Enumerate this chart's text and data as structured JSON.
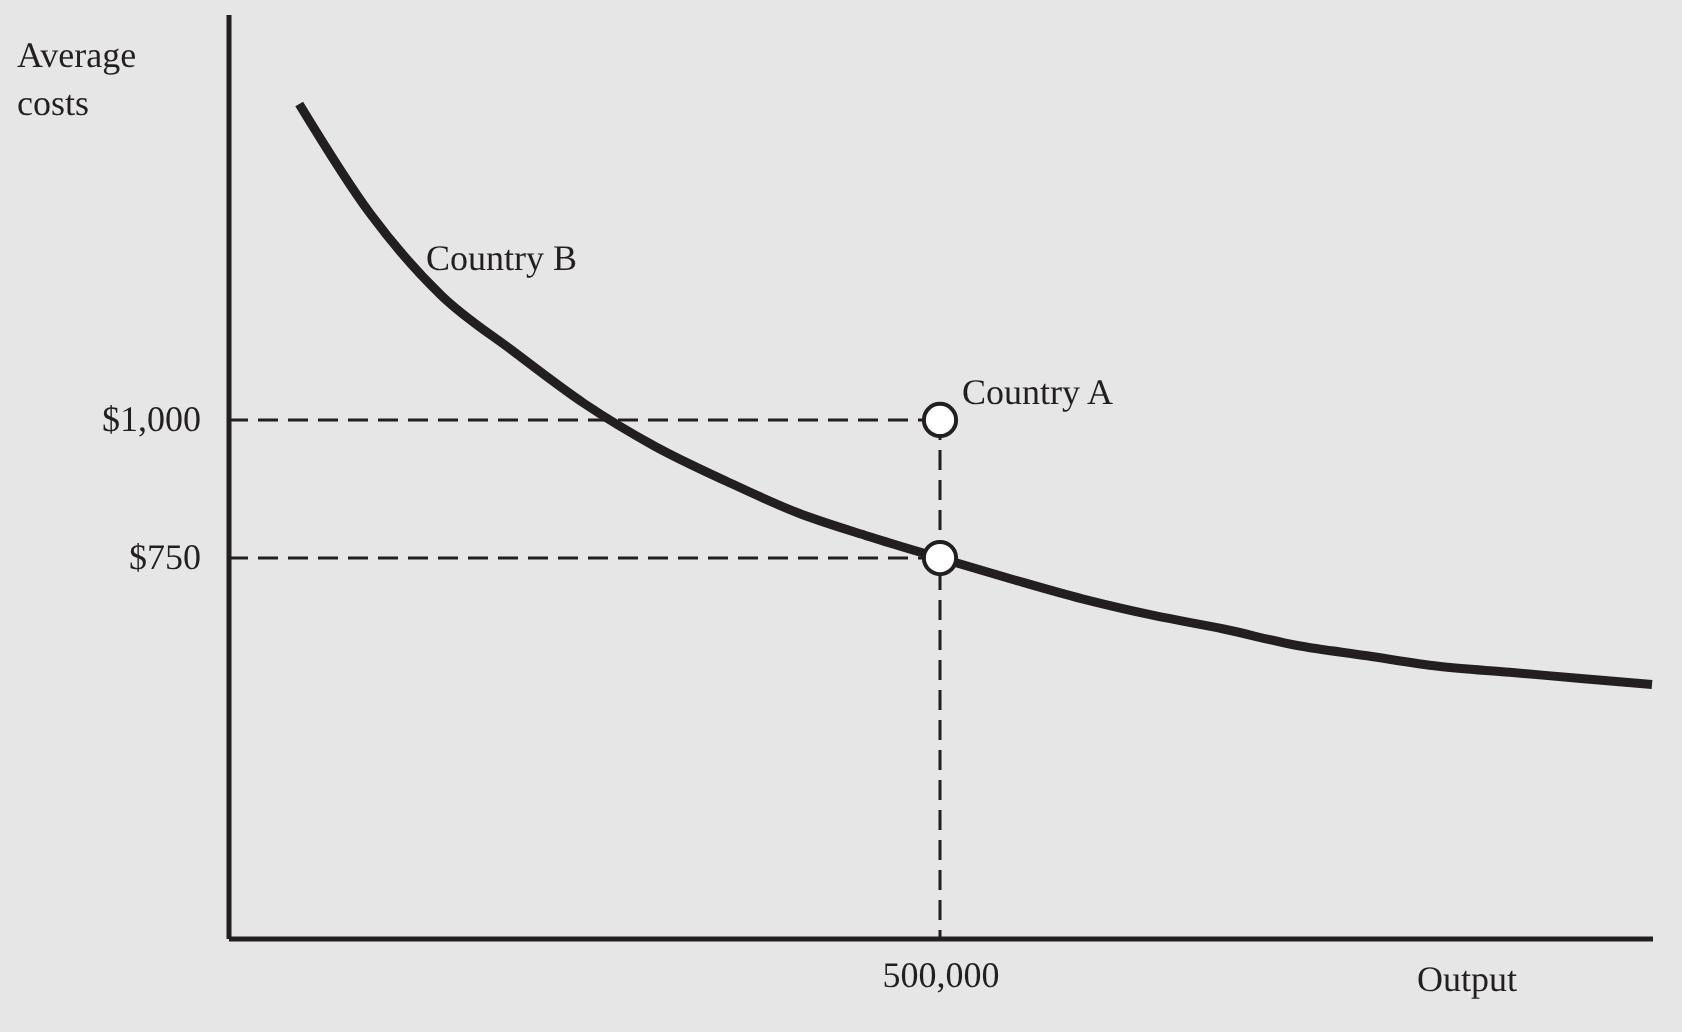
{
  "chart_data": {
    "type": "line",
    "xlabel": "Output",
    "ylabel": "Average costs",
    "categories": [
      null,
      null,
      null,
      null,
      null,
      null,
      null,
      null,
      null,
      null,
      "500,000",
      null,
      null,
      null,
      null,
      null,
      null,
      null,
      null,
      null,
      null
    ],
    "ylim": [
      62,
      1735
    ],
    "yticks": [
      {
        "value": 750,
        "label": "$750"
      },
      {
        "value": 1000,
        "label": "$1,000"
      }
    ],
    "grid": false,
    "series": [
      {
        "color": "#231f20",
        "line_style": "dashed",
        "values": [
          1000,
          1000,
          1000,
          1000,
          1000,
          1000,
          1000,
          1000,
          1000,
          1000,
          1000,
          null,
          null,
          null,
          null,
          null,
          null,
          null,
          null,
          null,
          null
        ]
      },
      {
        "color": "#231f20",
        "line_style": "dashed",
        "values": [
          750,
          750,
          750,
          750,
          750,
          750,
          750,
          750,
          750,
          750,
          750,
          null,
          null,
          null,
          null,
          null,
          null,
          null,
          null,
          null,
          null
        ]
      },
      {
        "color": "#231f20",
        "line_style": "dashed",
        "x": [
          "500,000",
          "500,000"
        ],
        "values": [
          1000,
          62
        ]
      },
      {
        "color": "#231f20",
        "values": [
          null,
          1572,
          1373,
          1225,
          1125,
          1030,
          952,
          889,
          832,
          789,
          750,
          712,
          676,
          646,
          621,
          592,
          573,
          554,
          543,
          532,
          521
        ]
      },
      {
        "type": "scatter",
        "color": "#ffffff",
        "marker": "circle",
        "x": [
          "500,000",
          "500,000"
        ],
        "values": [
          1000,
          750
        ]
      }
    ],
    "annotations": [
      "Country B",
      {
        "text": "Country A",
        "x": "500,000",
        "y": 1000
      }
    ]
  }
}
